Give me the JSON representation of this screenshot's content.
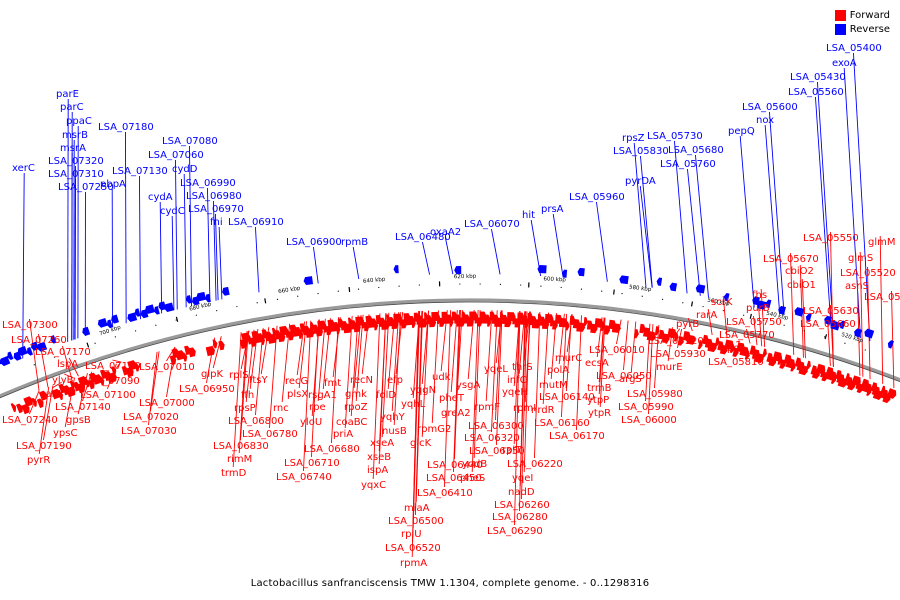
{
  "legend": {
    "forward_label": "Forward",
    "reverse_label": "Reverse",
    "forward_color": "#ff0000",
    "reverse_color": "#0000ff"
  },
  "caption": "Lactobacillus sanfranciscensis TMW 1.1304, complete genome. - 0..1298316",
  "ticks": [
    "520 kbp",
    "540 kbp",
    "560 kbp",
    "580 kbp",
    "600 kbp",
    "620 kbp",
    "640 kbp",
    "660 kbp",
    "680 kbp",
    "700 kbp"
  ],
  "reverse_genes": [
    "xerC",
    "parE",
    "parC",
    "ppaC",
    "msrB",
    "msrA",
    "LSA_07320",
    "LSA_07310",
    "LSA_07250",
    "LSA_07180",
    "LSA_07130",
    "LSA_07080",
    "LSA_07060",
    "pbpA",
    "cydA",
    "cydD",
    "cydC",
    "LSA_06990",
    "LSA_06980",
    "LSA_06970",
    "fni",
    "LSA_06910",
    "LSA_06900",
    "rpmB",
    "LSA_06480",
    "oxaA2",
    "LSA_06070",
    "hit",
    "prsA",
    "LSA_05960",
    "LSA_05830",
    "rpsZ",
    "pyrDA",
    "LSA_05730",
    "LSA_05760",
    "LSA_05680",
    "pepQ",
    "LSA_05600",
    "nox",
    "LSA_05560",
    "LSA_05430",
    "exoA",
    "LSA_05400"
  ],
  "forward_genes": [
    "LSA_07300",
    "LSA_07260",
    "LSA_07170",
    "lspA",
    "ylyB",
    "carA",
    "LSA_07240",
    "LSA_07140",
    "gpsB",
    "ypsC",
    "LSA_07190",
    "pyrR",
    "LSA_07110",
    "LSA_07090",
    "LSA_07100",
    "LSA_07010",
    "LSA_07000",
    "LSA_07020",
    "LSA_07030",
    "glpK",
    "LSA_06950",
    "rplS",
    "ffh",
    "ftsY",
    "rpsP",
    "LSA_06800",
    "LSA_06780",
    "LSA_06830",
    "rimM",
    "trmD",
    "rnc",
    "recG",
    "plsX",
    "yloU",
    "rsgA1",
    "rpe",
    "LSA_06710",
    "LSA_06740",
    "LSA_06680",
    "fmt",
    "coaBC",
    "priA",
    "rpoZ",
    "gmk",
    "recN",
    "xseB",
    "ispA",
    "yqxC",
    "xseA",
    "efp",
    "folD",
    "yqhY",
    "nusB",
    "LSA_06440",
    "yqhL",
    "udk",
    "LSA_06450",
    "glcK",
    "LSA_06410",
    "yqgN",
    "rpmG2",
    "miaA",
    "LSA_06500",
    "rplU",
    "LSA_06520",
    "rpmA",
    "pheT",
    "greA2",
    "ysgA",
    "rpmF",
    "LSA_06300",
    "LSA_06320",
    "yodB",
    "pheS",
    "LSA_06350",
    "yqeL",
    "infC",
    "yqeH",
    "thrS",
    "rpmI",
    "rplT",
    "LSA_06220",
    "yqeI",
    "nadD",
    "LSA_06260",
    "LSA_06280",
    "LSA_06290",
    "polA",
    "mutM",
    "LSA_06140",
    "nrdR",
    "LSA_06160",
    "LSA_06170",
    "murC",
    "ecsA",
    "LSA_06050",
    "trmB",
    "ytpP",
    "ytpR",
    "LSA_06010",
    "LSA_05920",
    "LSA_05930",
    "murE",
    "argS",
    "LSA_05980",
    "LSA_05990",
    "LSA_06000",
    "pyrB",
    "rarA",
    "scrK",
    "pgi",
    "LSA_05810",
    "LSA_05750",
    "LSA_05770",
    "fhs",
    "purB",
    "LSA_05670",
    "cbiO2",
    "cbiO1",
    "LSA_05630",
    "LSA_05660",
    "LSA_05550",
    "glmM",
    "glmS",
    "LSA_05520",
    "asnS",
    "LSA_05540"
  ]
}
